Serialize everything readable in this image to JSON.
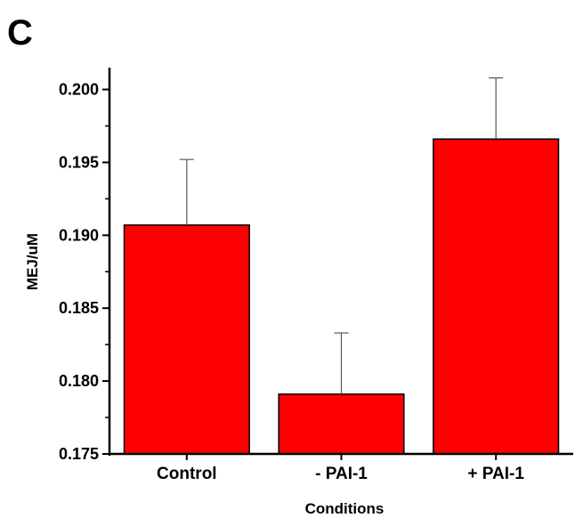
{
  "panel_label": "C",
  "chart_data": {
    "type": "bar",
    "categories": [
      "Control",
      "- PAI-1",
      "+ PAI-1"
    ],
    "values": [
      0.1907,
      0.1791,
      0.1966
    ],
    "error_upper": [
      0.1952,
      0.1833,
      0.2008
    ],
    "bar_color": "#ff0000",
    "xlabel": "Conditions",
    "ylabel": "MEJ/uM",
    "ylim": [
      0.175,
      0.2015
    ],
    "yticks": [
      "0.175",
      "0.180",
      "0.185",
      "0.190",
      "0.195",
      "0.200"
    ],
    "ytick_values": [
      0.175,
      0.18,
      0.185,
      0.19,
      0.195,
      0.2
    ],
    "grid": false,
    "legend": "none"
  }
}
